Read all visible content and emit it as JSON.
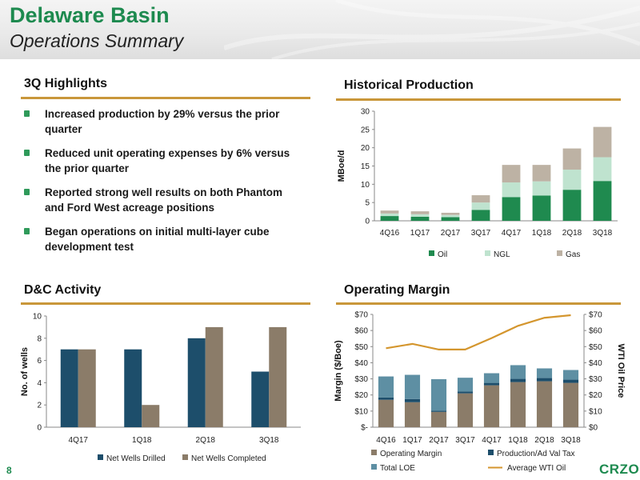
{
  "header": {
    "title": "Delaware Basin",
    "subtitle": "Operations Summary"
  },
  "highlights": {
    "heading": "3Q Highlights",
    "items": [
      "Increased production by 29% versus the prior quarter",
      "Reduced unit operating expenses by 6% versus the prior quarter",
      "Reported strong well results on both Phantom and Ford West acreage positions",
      "Began operations on initial multi-layer cube development test"
    ]
  },
  "production": {
    "heading": "Historical Production"
  },
  "dc": {
    "heading": "D&C Activity"
  },
  "margin": {
    "heading": "Operating Margin"
  },
  "footer": {
    "page": "8",
    "logo": "CRZO"
  },
  "colors": {
    "brand_green": "#1d8a4f",
    "gold_rule": "#c9973a"
  },
  "chart_data": [
    {
      "id": "historical-production",
      "type": "bar",
      "stacked": true,
      "categories": [
        "4Q16",
        "1Q17",
        "2Q17",
        "3Q17",
        "4Q17",
        "1Q18",
        "2Q18",
        "3Q18"
      ],
      "ylabel": "MBoe/d",
      "ylim": [
        0,
        30
      ],
      "yticks": [
        0,
        5,
        10,
        15,
        20,
        25,
        30
      ],
      "ytick_labels": [
        "0",
        "5",
        "10",
        "15",
        "20",
        "25",
        "30"
      ],
      "series": [
        {
          "name": "Oil",
          "color": "#1f8a4f",
          "values": [
            1.3,
            1.1,
            1.0,
            3.0,
            6.5,
            6.9,
            8.5,
            10.9
          ]
        },
        {
          "name": "NGL",
          "color": "#bfe3cf",
          "values": [
            0.7,
            0.7,
            0.6,
            2.0,
            4.0,
            3.9,
            5.5,
            6.5
          ]
        },
        {
          "name": "Gas",
          "color": "#bdb2a4",
          "values": [
            0.8,
            0.8,
            0.6,
            2.0,
            4.8,
            4.5,
            5.8,
            8.3
          ]
        }
      ],
      "legend": "bottom",
      "grid": false
    },
    {
      "id": "dc-activity",
      "type": "bar",
      "categories": [
        "4Q17",
        "1Q18",
        "2Q18",
        "3Q18"
      ],
      "ylabel": "No. of wells",
      "ylim": [
        0,
        10
      ],
      "yticks": [
        0,
        2,
        4,
        6,
        8,
        10
      ],
      "ytick_labels": [
        "0",
        "2",
        "4",
        "6",
        "8",
        "10"
      ],
      "series": [
        {
          "name": "Net Wells Drilled",
          "color": "#1d4e6b",
          "values": [
            7,
            7,
            8,
            5
          ]
        },
        {
          "name": "Net Wells Completed",
          "color": "#8b7c69",
          "values": [
            7,
            2,
            9,
            9
          ]
        }
      ],
      "legend": "bottom",
      "grid": false
    },
    {
      "id": "operating-margin",
      "type": "bar",
      "stacked": true,
      "categories": [
        "4Q16",
        "1Q17",
        "2Q17",
        "3Q17",
        "4Q17",
        "1Q18",
        "2Q18",
        "3Q18"
      ],
      "ylabel": "Margin ($/Boe)",
      "y2label": "WTI Oil Price",
      "ylim": [
        0,
        70
      ],
      "yticks": [
        0,
        10,
        20,
        30,
        40,
        50,
        60,
        70
      ],
      "ytick_labels": [
        "$-",
        "$10",
        "$20",
        "$30",
        "$40",
        "$50",
        "$60",
        "$70"
      ],
      "y2tick_labels": [
        "$0",
        "$10",
        "$20",
        "$30",
        "$40",
        "$50",
        "$60",
        "$70"
      ],
      "series": [
        {
          "name": "Operating Margin",
          "kind": "bar",
          "color": "#8b7c69",
          "values": [
            17,
            15.5,
            9.5,
            21,
            26,
            28,
            28.5,
            27.5
          ]
        },
        {
          "name": "Production/Ad Val Tax",
          "kind": "bar",
          "color": "#1d4e6b",
          "values": [
            1.5,
            2,
            0.8,
            1.2,
            1.5,
            2,
            2,
            2
          ]
        },
        {
          "name": "Total LOE",
          "kind": "bar",
          "color": "#5e8fa3",
          "values": [
            13,
            15,
            19.5,
            8.5,
            6,
            8.5,
            6,
            6
          ]
        },
        {
          "name": "Average WTI Oil",
          "kind": "line",
          "color": "#d4962e",
          "values": [
            49,
            51.7,
            48.2,
            48.2,
            55.3,
            62.9,
            67.9,
            69.5
          ]
        }
      ],
      "legend": "bottom",
      "grid": false
    }
  ]
}
